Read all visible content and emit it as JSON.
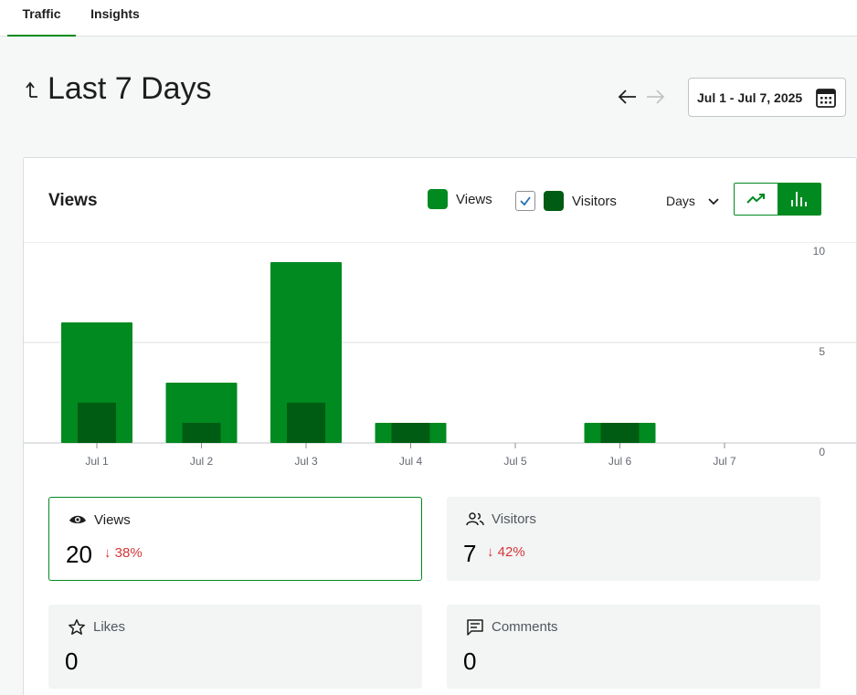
{
  "tabs": [
    {
      "label": "Traffic",
      "active": true
    },
    {
      "label": "Insights",
      "active": false
    }
  ],
  "header": {
    "title": "Last 7 Days",
    "date_range": "Jul 1 - Jul 7, 2025"
  },
  "colors": {
    "accent": "#008a20",
    "views": "#008a20",
    "visitors": "#005c12",
    "negative": "#d63638"
  },
  "card": {
    "title": "Views",
    "legend": {
      "views": "Views",
      "visitors": "Visitors"
    },
    "period": "Days"
  },
  "chart_data": {
    "type": "bar",
    "categories": [
      "Jul 1",
      "Jul 2",
      "Jul 3",
      "Jul 4",
      "Jul 5",
      "Jul 6",
      "Jul 7"
    ],
    "series": [
      {
        "name": "Views",
        "values": [
          6,
          3,
          9,
          1,
          0,
          1,
          0
        ]
      },
      {
        "name": "Visitors",
        "values": [
          2,
          1,
          2,
          1,
          0,
          1,
          0
        ]
      }
    ],
    "yticks": [
      "0",
      "5",
      "10"
    ],
    "ylim": [
      0,
      10
    ],
    "grid": true
  },
  "stats": {
    "views": {
      "label": "Views",
      "value": "20",
      "delta": "38%"
    },
    "visitors": {
      "label": "Visitors",
      "value": "7",
      "delta": "42%"
    },
    "likes": {
      "label": "Likes",
      "value": "0"
    },
    "comments": {
      "label": "Comments",
      "value": "0"
    }
  }
}
